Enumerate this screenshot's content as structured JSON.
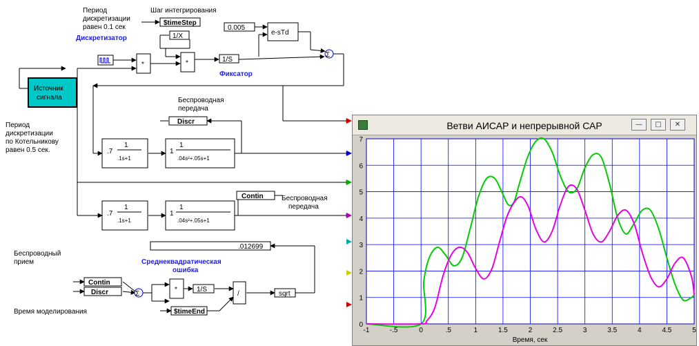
{
  "diagram": {
    "labels": {
      "period_sampling": [
        "Период",
        "дискретизации",
        "равен 0.1 сек"
      ],
      "integration_step": "Шаг интегрирования",
      "sampler": "Дискретизатор",
      "hold": "Фиксатор",
      "signal_source": [
        "Источник",
        "сигнала"
      ],
      "period_kotelnikov": [
        "Период",
        "дискретизации",
        "по Котельникову",
        "равен 0.5 сек."
      ],
      "wireless_tx_1": [
        "Беспроводная",
        "передача"
      ],
      "wireless_tx_2": [
        "Беспроводная",
        "передача"
      ],
      "wireless_rx": [
        "Беспроводный",
        "прием"
      ],
      "rms_error": [
        "Среднеквадратическая",
        "ошибка"
      ],
      "sim_time": "Время моделирования"
    },
    "blocks": {
      "time_step": "$timeStep",
      "inv_x": "1/X",
      "integrator_1": "1/S",
      "delay_const": "0.005",
      "delay": "e-sTd",
      "discr_tag": "Discr",
      "contin_tag_out": "Contin",
      "rms_value": ".012699",
      "contin_tag_in": "Contin",
      "discr_tag_in": "Discr",
      "integrator_2": "1/S",
      "divide": "/",
      "sqrt": "sqrt",
      "time_end": "$timeEnd",
      "tf1_gain": ".7",
      "tf1_num": "1",
      "tf1_den": ".1s+1",
      "tf2_gain": "1",
      "tf2_num": "1",
      "tf2_den": ".04s²+.05s+1",
      "tf3_gain": ".7",
      "tf3_num": "1",
      "tf3_den": ".1s+1",
      "tf4_gain": "1",
      "tf4_num": "1",
      "tf4_den": ".04s²+.05s+1"
    }
  },
  "plot": {
    "title": "Ветви АИСАР и непрерывной САР",
    "xlabel": "Время, сек",
    "colors": {
      "green": "#00cc00",
      "magenta": "#e600e6",
      "grid": "#0000ff",
      "bg": "#ffffff"
    }
  },
  "chart_data": {
    "type": "line",
    "title": "Ветви АИСАР и непрерывной САР",
    "xlabel": "Время, сек",
    "ylabel": "",
    "xlim": [
      -1,
      5
    ],
    "ylim": [
      0,
      7
    ],
    "x_ticks": [
      "-1",
      "-.5",
      "0",
      ".5",
      "1",
      "1.5",
      "2",
      "2.5",
      "3",
      "3.5",
      "4",
      "4.5",
      "5"
    ],
    "y_ticks": [
      "0",
      "1",
      "2",
      "3",
      "4",
      "5",
      "6",
      "7"
    ],
    "grid": true,
    "series": [
      {
        "color": "#00cc00",
        "x": [
          -1,
          0,
          0.05,
          0.15,
          0.3,
          0.45,
          0.6,
          0.75,
          0.9,
          1.05,
          1.2,
          1.35,
          1.5,
          1.6,
          1.7,
          1.8,
          1.95,
          2.1,
          2.25,
          2.4,
          2.55,
          2.7,
          2.85,
          3.0,
          3.15,
          3.3,
          3.45,
          3.6,
          3.75,
          3.9,
          4.05,
          4.2,
          4.35,
          4.5,
          4.65,
          4.8,
          4.95,
          5.0
        ],
        "y": [
          0,
          0,
          1.6,
          2.5,
          2.9,
          2.6,
          2.2,
          2.5,
          3.6,
          4.8,
          5.5,
          5.5,
          4.9,
          4.5,
          4.6,
          5.3,
          6.3,
          6.9,
          7.0,
          6.5,
          5.6,
          5.0,
          5.1,
          5.9,
          6.4,
          6.3,
          5.3,
          4.0,
          3.4,
          3.8,
          4.3,
          4.3,
          3.6,
          2.5,
          1.5,
          0.9,
          1.0,
          1.1
        ]
      },
      {
        "color": "#e600e6",
        "x": [
          -1,
          0,
          0.1,
          0.25,
          0.4,
          0.55,
          0.7,
          0.85,
          1.0,
          1.15,
          1.3,
          1.45,
          1.6,
          1.8,
          1.95,
          2.1,
          2.25,
          2.4,
          2.55,
          2.7,
          2.85,
          3.0,
          3.15,
          3.3,
          3.45,
          3.6,
          3.75,
          3.9,
          4.05,
          4.2,
          4.35,
          4.5,
          4.65,
          4.8,
          4.95,
          5.0
        ],
        "y": [
          0,
          0,
          0.1,
          0.6,
          1.8,
          2.6,
          2.9,
          2.7,
          2.1,
          1.7,
          2.1,
          3.2,
          4.2,
          4.8,
          4.5,
          3.6,
          3.1,
          3.5,
          4.5,
          5.2,
          5.1,
          4.3,
          3.4,
          3.1,
          3.5,
          4.1,
          4.3,
          3.8,
          2.7,
          1.8,
          1.4,
          1.7,
          2.3,
          2.5,
          1.8,
          1.1
        ]
      }
    ]
  }
}
